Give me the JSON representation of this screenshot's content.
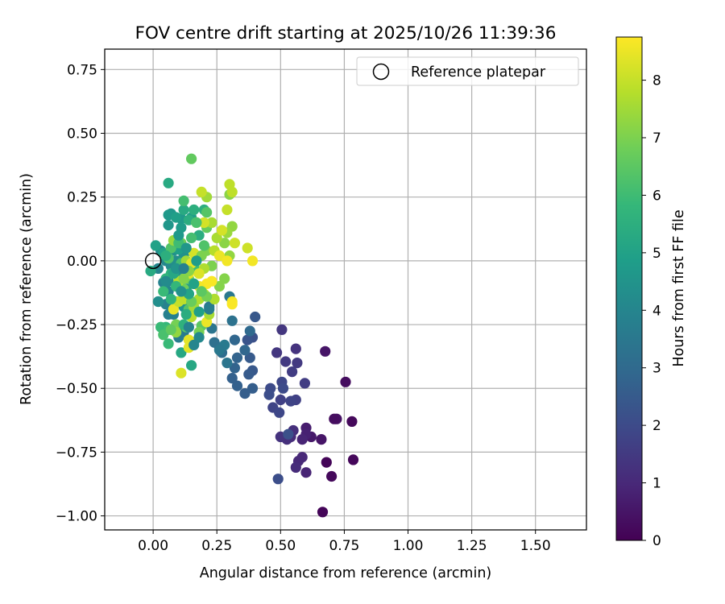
{
  "chart_data": {
    "type": "scatter",
    "title": "FOV centre drift starting at 2025/10/26 11:39:36",
    "xlabel": "Angular distance from reference (arcmin)",
    "ylabel": "Rotation from reference (arcmin)",
    "xlim": [
      -0.19,
      1.7
    ],
    "ylim": [
      -1.055,
      0.83
    ],
    "x_ticks": [
      0.0,
      0.25,
      0.5,
      0.75,
      1.0,
      1.25,
      1.5
    ],
    "x_tick_labels": [
      "0.00",
      "0.25",
      "0.50",
      "0.75",
      "1.00",
      "1.25",
      "1.50"
    ],
    "y_ticks": [
      0.75,
      0.5,
      0.25,
      0.0,
      -0.25,
      -0.5,
      -0.75,
      -1.0
    ],
    "y_tick_labels": [
      "0.75",
      "0.50",
      "0.25",
      "0.00",
      "−0.25",
      "−0.50",
      "−0.75",
      "−1.00"
    ],
    "grid": true,
    "legend": {
      "label": "Reference platepar",
      "position": "top-right"
    },
    "reference_point": {
      "x": 0.0,
      "y": 0.0
    },
    "colorbar": {
      "label": "Hours from first FF file",
      "min": 0,
      "max": 8.75,
      "ticks": [
        0,
        1,
        2,
        3,
        4,
        5,
        6,
        7,
        8
      ],
      "tick_labels": [
        "0",
        "1",
        "2",
        "3",
        "4",
        "5",
        "6",
        "7",
        "8"
      ],
      "colormap": "viridis",
      "stops": [
        "#440154",
        "#482878",
        "#3e4989",
        "#31688e",
        "#26828e",
        "#1f9e89",
        "#35b779",
        "#6ece58",
        "#b5de2b",
        "#fde725"
      ]
    },
    "points": [
      [
        0.665,
        -0.985,
        0.1
      ],
      [
        0.785,
        -0.78,
        0.15
      ],
      [
        0.7,
        -0.845,
        0.2
      ],
      [
        0.68,
        -0.79,
        0.1
      ],
      [
        0.78,
        -0.63,
        0.2
      ],
      [
        0.755,
        -0.475,
        0.3
      ],
      [
        0.72,
        -0.62,
        0.4
      ],
      [
        0.71,
        -0.62,
        0.3
      ],
      [
        0.675,
        -0.355,
        0.5
      ],
      [
        0.66,
        -0.7,
        0.5
      ],
      [
        0.62,
        -0.69,
        0.6
      ],
      [
        0.6,
        -0.655,
        0.7
      ],
      [
        0.6,
        -0.68,
        0.8
      ],
      [
        0.585,
        -0.7,
        0.9
      ],
      [
        0.6,
        -0.83,
        0.9
      ],
      [
        0.585,
        -0.77,
        1.0
      ],
      [
        0.57,
        -0.785,
        1.0
      ],
      [
        0.56,
        -0.81,
        1.1
      ],
      [
        0.54,
        -0.69,
        1.1
      ],
      [
        0.55,
        -0.665,
        1.2
      ],
      [
        0.525,
        -0.7,
        1.2
      ],
      [
        0.5,
        -0.69,
        1.3
      ],
      [
        0.56,
        -0.345,
        1.3
      ],
      [
        0.505,
        -0.27,
        1.4
      ],
      [
        0.485,
        -0.36,
        1.4
      ],
      [
        0.52,
        -0.395,
        1.5
      ],
      [
        0.565,
        -0.4,
        1.5
      ],
      [
        0.545,
        -0.435,
        1.6
      ],
      [
        0.595,
        -0.48,
        1.6
      ],
      [
        0.56,
        -0.545,
        1.7
      ],
      [
        0.5,
        -0.545,
        1.7
      ],
      [
        0.54,
        -0.55,
        1.8
      ],
      [
        0.47,
        -0.575,
        1.8
      ],
      [
        0.495,
        -0.595,
        1.9
      ],
      [
        0.505,
        -0.475,
        1.9
      ],
      [
        0.51,
        -0.5,
        2.0
      ],
      [
        0.46,
        -0.5,
        2.0
      ],
      [
        0.455,
        -0.525,
        2.1
      ],
      [
        0.49,
        -0.855,
        2.1
      ],
      [
        0.53,
        -0.68,
        2.2
      ],
      [
        0.39,
        -0.3,
        2.2
      ],
      [
        0.37,
        -0.31,
        2.3
      ],
      [
        0.4,
        -0.22,
        2.4
      ],
      [
        0.39,
        -0.43,
        2.4
      ],
      [
        0.375,
        -0.445,
        2.5
      ],
      [
        0.38,
        -0.38,
        2.5
      ],
      [
        0.39,
        -0.5,
        2.6
      ],
      [
        0.36,
        -0.52,
        2.6
      ],
      [
        0.33,
        -0.49,
        2.7
      ],
      [
        0.31,
        -0.46,
        2.7
      ],
      [
        0.32,
        -0.42,
        2.8
      ],
      [
        0.33,
        -0.38,
        2.8
      ],
      [
        0.32,
        -0.31,
        2.9
      ],
      [
        0.36,
        -0.35,
        2.9
      ],
      [
        0.38,
        -0.275,
        3.0
      ],
      [
        0.26,
        -0.34,
        3.0
      ],
      [
        0.27,
        -0.36,
        3.1
      ],
      [
        0.24,
        -0.32,
        3.2
      ],
      [
        0.31,
        -0.235,
        3.3
      ],
      [
        0.23,
        -0.265,
        3.4
      ],
      [
        0.22,
        -0.18,
        3.5
      ],
      [
        0.3,
        -0.14,
        3.5
      ],
      [
        0.16,
        -0.32,
        3.6
      ],
      [
        0.12,
        -0.28,
        3.6
      ],
      [
        0.1,
        -0.3,
        3.7
      ],
      [
        0.08,
        -0.21,
        3.8
      ],
      [
        0.06,
        -0.21,
        3.8
      ],
      [
        0.05,
        -0.17,
        3.9
      ],
      [
        0.04,
        -0.085,
        3.9
      ],
      [
        0.06,
        -0.12,
        4.0
      ],
      [
        0.02,
        -0.03,
        4.0
      ],
      [
        0.05,
        0.0,
        4.1
      ],
      [
        0.03,
        0.04,
        4.1
      ],
      [
        0.07,
        -0.02,
        4.2
      ],
      [
        0.06,
        -0.08,
        4.2
      ],
      [
        0.09,
        0.0,
        4.3
      ],
      [
        0.11,
        -0.05,
        4.3
      ],
      [
        0.08,
        0.04,
        4.4
      ],
      [
        0.12,
        0.02,
        4.4
      ],
      [
        0.13,
        -0.11,
        4.5
      ],
      [
        0.12,
        -0.18,
        4.5
      ],
      [
        0.07,
        0.185,
        4.6
      ],
      [
        0.06,
        0.14,
        4.6
      ],
      [
        0.06,
        0.18,
        4.7
      ],
      [
        0.11,
        0.165,
        4.7
      ],
      [
        0.15,
        0.17,
        4.8
      ],
      [
        0.11,
        0.13,
        4.8
      ],
      [
        0.09,
        0.17,
        4.9
      ],
      [
        0.1,
        0.045,
        4.9
      ],
      [
        0.01,
        0.06,
        5.0
      ],
      [
        0.04,
        0.03,
        5.0
      ],
      [
        0.16,
        -0.03,
        5.1
      ],
      [
        0.14,
        -0.13,
        5.1
      ],
      [
        0.15,
        -0.41,
        5.2
      ],
      [
        0.11,
        -0.36,
        5.2
      ],
      [
        0.06,
        0.305,
        5.3
      ],
      [
        0.12,
        0.2,
        5.3
      ],
      [
        0.14,
        0.16,
        5.4
      ],
      [
        0.18,
        0.1,
        5.4
      ],
      [
        0.16,
        0.2,
        5.5
      ],
      [
        0.2,
        0.2,
        5.5
      ],
      [
        0.07,
        -0.05,
        5.6
      ],
      [
        0.11,
        -0.1,
        5.6
      ],
      [
        0.05,
        -0.07,
        5.7
      ],
      [
        0.09,
        -0.16,
        5.7
      ],
      [
        0.02,
        -0.16,
        5.8
      ],
      [
        0.05,
        -0.26,
        5.8
      ],
      [
        0.06,
        -0.325,
        5.9
      ],
      [
        0.03,
        -0.26,
        5.9
      ],
      [
        0.06,
        -0.27,
        6.0
      ],
      [
        0.16,
        -0.02,
        6.0
      ],
      [
        0.11,
        -0.01,
        6.1
      ],
      [
        0.12,
        0.235,
        6.1
      ],
      [
        0.09,
        -0.28,
        6.2
      ],
      [
        0.04,
        -0.29,
        6.2
      ],
      [
        0.07,
        0.05,
        6.3
      ],
      [
        0.06,
        0.01,
        6.3
      ],
      [
        0.14,
        -0.19,
        6.4
      ],
      [
        0.13,
        -0.26,
        6.4
      ],
      [
        0.19,
        -0.255,
        6.5
      ],
      [
        0.15,
        0.4,
        6.6
      ],
      [
        0.21,
        0.13,
        6.6
      ],
      [
        0.21,
        0.14,
        6.7
      ],
      [
        0.17,
        0.02,
        6.7
      ],
      [
        0.14,
        -0.07,
        6.8
      ],
      [
        0.12,
        -0.11,
        6.8
      ],
      [
        0.09,
        -0.25,
        6.9
      ],
      [
        0.18,
        -0.28,
        6.9
      ],
      [
        0.21,
        0.04,
        7.0
      ],
      [
        0.23,
        -0.02,
        7.0
      ],
      [
        0.26,
        -0.1,
        7.1
      ],
      [
        0.28,
        -0.07,
        7.1
      ],
      [
        0.3,
        0.26,
        7.2
      ],
      [
        0.28,
        0.07,
        7.2
      ],
      [
        0.31,
        0.135,
        7.3
      ],
      [
        0.3,
        0.02,
        7.3
      ],
      [
        0.29,
        0.11,
        7.4
      ],
      [
        0.08,
        0.08,
        7.4
      ],
      [
        0.13,
        0.0,
        7.5
      ],
      [
        0.21,
        0.25,
        7.5
      ],
      [
        0.23,
        0.15,
        7.6
      ],
      [
        0.25,
        0.09,
        7.6
      ],
      [
        0.2,
        -0.03,
        7.7
      ],
      [
        0.18,
        -0.15,
        7.7
      ],
      [
        0.15,
        -0.22,
        7.8
      ],
      [
        0.24,
        0.04,
        7.8
      ],
      [
        0.3,
        0.3,
        7.9
      ],
      [
        0.31,
        0.27,
        7.9
      ],
      [
        0.19,
        0.27,
        8.0
      ],
      [
        0.29,
        0.2,
        8.0
      ],
      [
        0.37,
        0.05,
        8.1
      ],
      [
        0.32,
        0.07,
        8.1
      ],
      [
        0.27,
        0.12,
        8.2
      ],
      [
        0.2,
        0.15,
        8.2
      ],
      [
        0.17,
        0.15,
        8.3
      ],
      [
        0.11,
        -0.44,
        8.3
      ],
      [
        0.14,
        -0.34,
        8.4
      ],
      [
        0.14,
        -0.31,
        8.4
      ],
      [
        0.08,
        -0.19,
        8.5
      ],
      [
        0.21,
        -0.24,
        8.5
      ],
      [
        0.26,
        0.02,
        8.5
      ],
      [
        0.29,
        0.0,
        8.6
      ],
      [
        0.39,
        0.0,
        8.6
      ],
      [
        0.31,
        -0.16,
        8.6
      ],
      [
        0.31,
        -0.17,
        8.7
      ],
      [
        0.23,
        -0.08,
        8.7
      ],
      [
        0.21,
        -0.09,
        8.7
      ],
      [
        0.18,
        -0.1,
        8.6
      ],
      [
        0.14,
        -0.05,
        8.5
      ],
      [
        0.15,
        -0.01,
        8.4
      ],
      [
        0.18,
        -0.05,
        8.3
      ],
      [
        0.16,
        0.03,
        8.2
      ],
      [
        0.2,
        -0.13,
        8.1
      ],
      [
        0.1,
        -0.16,
        8.0
      ],
      [
        0.12,
        -0.15,
        7.9
      ],
      [
        0.1,
        -0.08,
        7.8
      ],
      [
        0.24,
        -0.15,
        7.7
      ],
      [
        0.22,
        -0.21,
        7.6
      ],
      [
        0.16,
        -0.18,
        7.5
      ],
      [
        0.16,
        -0.09,
        7.4
      ],
      [
        0.09,
        -0.28,
        7.3
      ],
      [
        0.14,
        -0.04,
        7.2
      ],
      [
        0.12,
        -0.07,
        7.1
      ],
      [
        0.19,
        0.02,
        7.0
      ],
      [
        0.21,
        -0.14,
        6.9
      ],
      [
        0.11,
        0.07,
        6.8
      ],
      [
        0.15,
        -0.16,
        6.7
      ],
      [
        0.07,
        -0.27,
        6.6
      ],
      [
        0.19,
        -0.12,
        6.5
      ],
      [
        0.21,
        0.19,
        6.4
      ],
      [
        0.2,
        0.06,
        6.3
      ],
      [
        0.17,
        0.15,
        6.2
      ],
      [
        0.15,
        0.09,
        6.1
      ],
      [
        0.1,
        0.07,
        6.0
      ],
      [
        0.04,
        -0.12,
        5.9
      ],
      [
        0.09,
        -0.1,
        5.8
      ],
      [
        0.07,
        -0.15,
        5.7
      ],
      [
        0.12,
        -0.25,
        5.6
      ],
      [
        0.05,
        0.02,
        5.5
      ],
      [
        0.13,
        -0.21,
        5.4
      ],
      [
        -0.01,
        -0.04,
        5.3
      ],
      [
        0.08,
        -0.05,
        5.2
      ],
      [
        0.14,
        -0.13,
        5.1
      ],
      [
        0.16,
        -0.09,
        5.0
      ],
      [
        0.18,
        -0.2,
        4.9
      ],
      [
        0.17,
        0.0,
        4.8
      ],
      [
        0.1,
        0.1,
        4.7
      ],
      [
        0.13,
        0.05,
        4.6
      ],
      [
        0.09,
        -0.03,
        4.5
      ],
      [
        0.11,
        -0.12,
        4.4
      ],
      [
        0.02,
        -0.16,
        4.3
      ],
      [
        0.05,
        -0.08,
        4.2
      ],
      [
        0.18,
        -0.3,
        4.1
      ],
      [
        0.16,
        -0.33,
        4.0
      ],
      [
        0.14,
        -0.26,
        3.9
      ],
      [
        0.12,
        -0.03,
        3.8
      ],
      [
        0.22,
        -0.19,
        3.7
      ],
      [
        0.28,
        -0.33,
        3.6
      ],
      [
        0.26,
        -0.35,
        3.5
      ],
      [
        0.29,
        -0.4,
        3.4
      ]
    ]
  }
}
